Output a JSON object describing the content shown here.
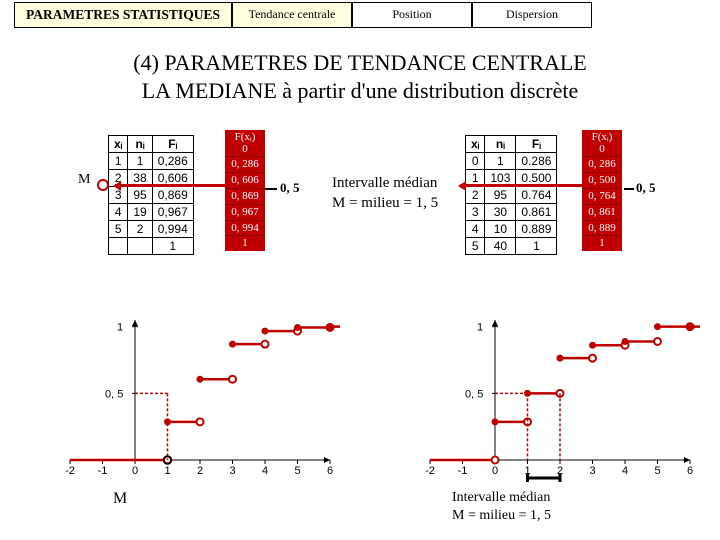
{
  "tabs": {
    "main": "PARAMETRES STATISTIQUES",
    "t1": "Tendance centrale",
    "t2": "Position",
    "t3": "Dispersion"
  },
  "heading_line1": "(4) PARAMETRES DE TENDANCE CENTRALE",
  "heading_line2": "LA MEDIANE à partir d'une distribution discrète",
  "table1": {
    "head": [
      "xᵢ",
      "nᵢ",
      "Fᵢ"
    ],
    "rows": [
      [
        "1",
        "1",
        "0,286"
      ],
      [
        "2",
        "38",
        "0,606"
      ],
      [
        "3",
        "95",
        "0,869"
      ],
      [
        "4",
        "19",
        "0,967"
      ],
      [
        "5",
        "2",
        "0,994"
      ],
      [
        "",
        "",
        "1"
      ]
    ]
  },
  "fcol1": {
    "head": "F(xᵢ)\n0",
    "cells": [
      "0, 286",
      "0, 606",
      "0, 869",
      "0, 967",
      "0, 994",
      "1"
    ]
  },
  "table2": {
    "head": [
      "xᵢ",
      "nᵢ",
      "Fᵢ"
    ],
    "rows": [
      [
        "0",
        "1",
        "0.286"
      ],
      [
        "1",
        "103",
        "0.500"
      ],
      [
        "2",
        "95",
        "0.764"
      ],
      [
        "3",
        "30",
        "0.861"
      ],
      [
        "4",
        "10",
        "0.889"
      ],
      [
        "5",
        "40",
        "1"
      ]
    ]
  },
  "fcol2": {
    "head": "F(xᵢ)\n0",
    "cells": [
      "0, 286",
      "0, 500",
      "0, 764",
      "0, 861",
      "0, 889",
      "1"
    ]
  },
  "label_M": "M",
  "label_half": "0, 5",
  "mid_label1": "Intervalle médian",
  "mid_label2": "M = milieu = 1, 5",
  "chart": {
    "xticks": [
      -2,
      -1,
      0,
      1,
      2,
      3,
      4,
      5,
      6
    ],
    "y_half": "0, 5",
    "y_one": "1"
  },
  "chartA": {
    "steps": [
      [
        1,
        0.286
      ],
      [
        2,
        0.606
      ],
      [
        3,
        0.869
      ],
      [
        4,
        0.967
      ],
      [
        5,
        0.994
      ],
      [
        6,
        1
      ]
    ],
    "median_x": 1
  },
  "chartB": {
    "steps": [
      [
        0,
        0.286
      ],
      [
        1,
        0.5
      ],
      [
        2,
        0.764
      ],
      [
        3,
        0.861
      ],
      [
        4,
        0.889
      ],
      [
        5,
        1
      ],
      [
        6,
        1
      ]
    ],
    "median_lo": 1,
    "median_hi": 2
  },
  "bottom_label1": "Intervalle médian",
  "bottom_label2": "M = milieu = 1, 5",
  "colors": {
    "red": "#c00000"
  }
}
